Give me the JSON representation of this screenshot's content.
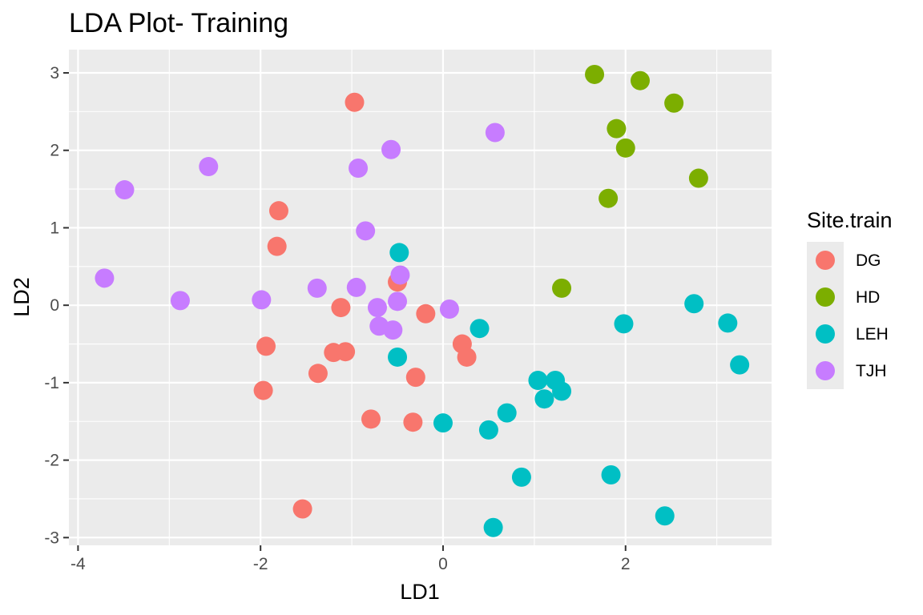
{
  "chart_data": {
    "type": "scatter",
    "title": "LDA Plot- Training",
    "xlabel": "LD1",
    "ylabel": "LD2",
    "xlim": [
      -4.1,
      3.6
    ],
    "ylim": [
      -3.1,
      3.3
    ],
    "xticks": [
      -4,
      -2,
      0,
      2
    ],
    "yticks": [
      -3,
      -2,
      -1,
      0,
      1,
      2,
      3
    ],
    "tick_labels_x": [
      "-4",
      "-2",
      "0",
      "2"
    ],
    "tick_labels_y": [
      "-3",
      "-2",
      "-1",
      "0",
      "1",
      "2",
      "3"
    ],
    "grid": true,
    "legend": {
      "title": "Site.train",
      "position": "right"
    },
    "series": [
      {
        "name": "DG",
        "color": "#F8766D",
        "points": [
          [
            -0.97,
            2.62
          ],
          [
            -1.8,
            1.22
          ],
          [
            -1.82,
            0.76
          ],
          [
            -0.5,
            0.3
          ],
          [
            -1.12,
            -0.03
          ],
          [
            -0.19,
            -0.11
          ],
          [
            0.21,
            -0.5
          ],
          [
            0.26,
            -0.67
          ],
          [
            -1.2,
            -0.61
          ],
          [
            -1.07,
            -0.6
          ],
          [
            -1.94,
            -0.53
          ],
          [
            -1.37,
            -0.88
          ],
          [
            -0.3,
            -0.93
          ],
          [
            -1.97,
            -1.1
          ],
          [
            -0.79,
            -1.47
          ],
          [
            -0.33,
            -1.51
          ],
          [
            -1.54,
            -2.63
          ]
        ]
      },
      {
        "name": "HD",
        "color": "#7CAE00",
        "points": [
          [
            1.66,
            2.98
          ],
          [
            2.16,
            2.9
          ],
          [
            2.53,
            2.61
          ],
          [
            1.9,
            2.28
          ],
          [
            2.0,
            2.03
          ],
          [
            2.8,
            1.64
          ],
          [
            1.81,
            1.38
          ],
          [
            1.3,
            0.22
          ]
        ]
      },
      {
        "name": "LEH",
        "color": "#00BFC4",
        "points": [
          [
            -0.48,
            0.68
          ],
          [
            2.75,
            0.02
          ],
          [
            3.12,
            -0.23
          ],
          [
            1.98,
            -0.24
          ],
          [
            0.4,
            -0.3
          ],
          [
            -0.5,
            -0.67
          ],
          [
            3.25,
            -0.77
          ],
          [
            1.04,
            -0.97
          ],
          [
            1.23,
            -0.97
          ],
          [
            1.3,
            -1.11
          ],
          [
            1.11,
            -1.21
          ],
          [
            0.7,
            -1.39
          ],
          [
            0.0,
            -1.52
          ],
          [
            0.5,
            -1.61
          ],
          [
            0.86,
            -2.22
          ],
          [
            1.84,
            -2.19
          ],
          [
            2.43,
            -2.72
          ],
          [
            0.55,
            -2.87
          ]
        ]
      },
      {
        "name": "TJH",
        "color": "#C77CFF",
        "points": [
          [
            0.57,
            2.23
          ],
          [
            -0.57,
            2.01
          ],
          [
            -0.93,
            1.77
          ],
          [
            -2.57,
            1.79
          ],
          [
            -3.49,
            1.49
          ],
          [
            -0.85,
            0.96
          ],
          [
            -0.47,
            0.39
          ],
          [
            -3.71,
            0.35
          ],
          [
            -1.38,
            0.22
          ],
          [
            -0.95,
            0.23
          ],
          [
            -2.88,
            0.06
          ],
          [
            -1.99,
            0.07
          ],
          [
            -0.5,
            0.05
          ],
          [
            -0.72,
            -0.03
          ],
          [
            0.07,
            -0.05
          ],
          [
            -0.7,
            -0.27
          ],
          [
            -0.55,
            -0.32
          ]
        ]
      }
    ]
  }
}
